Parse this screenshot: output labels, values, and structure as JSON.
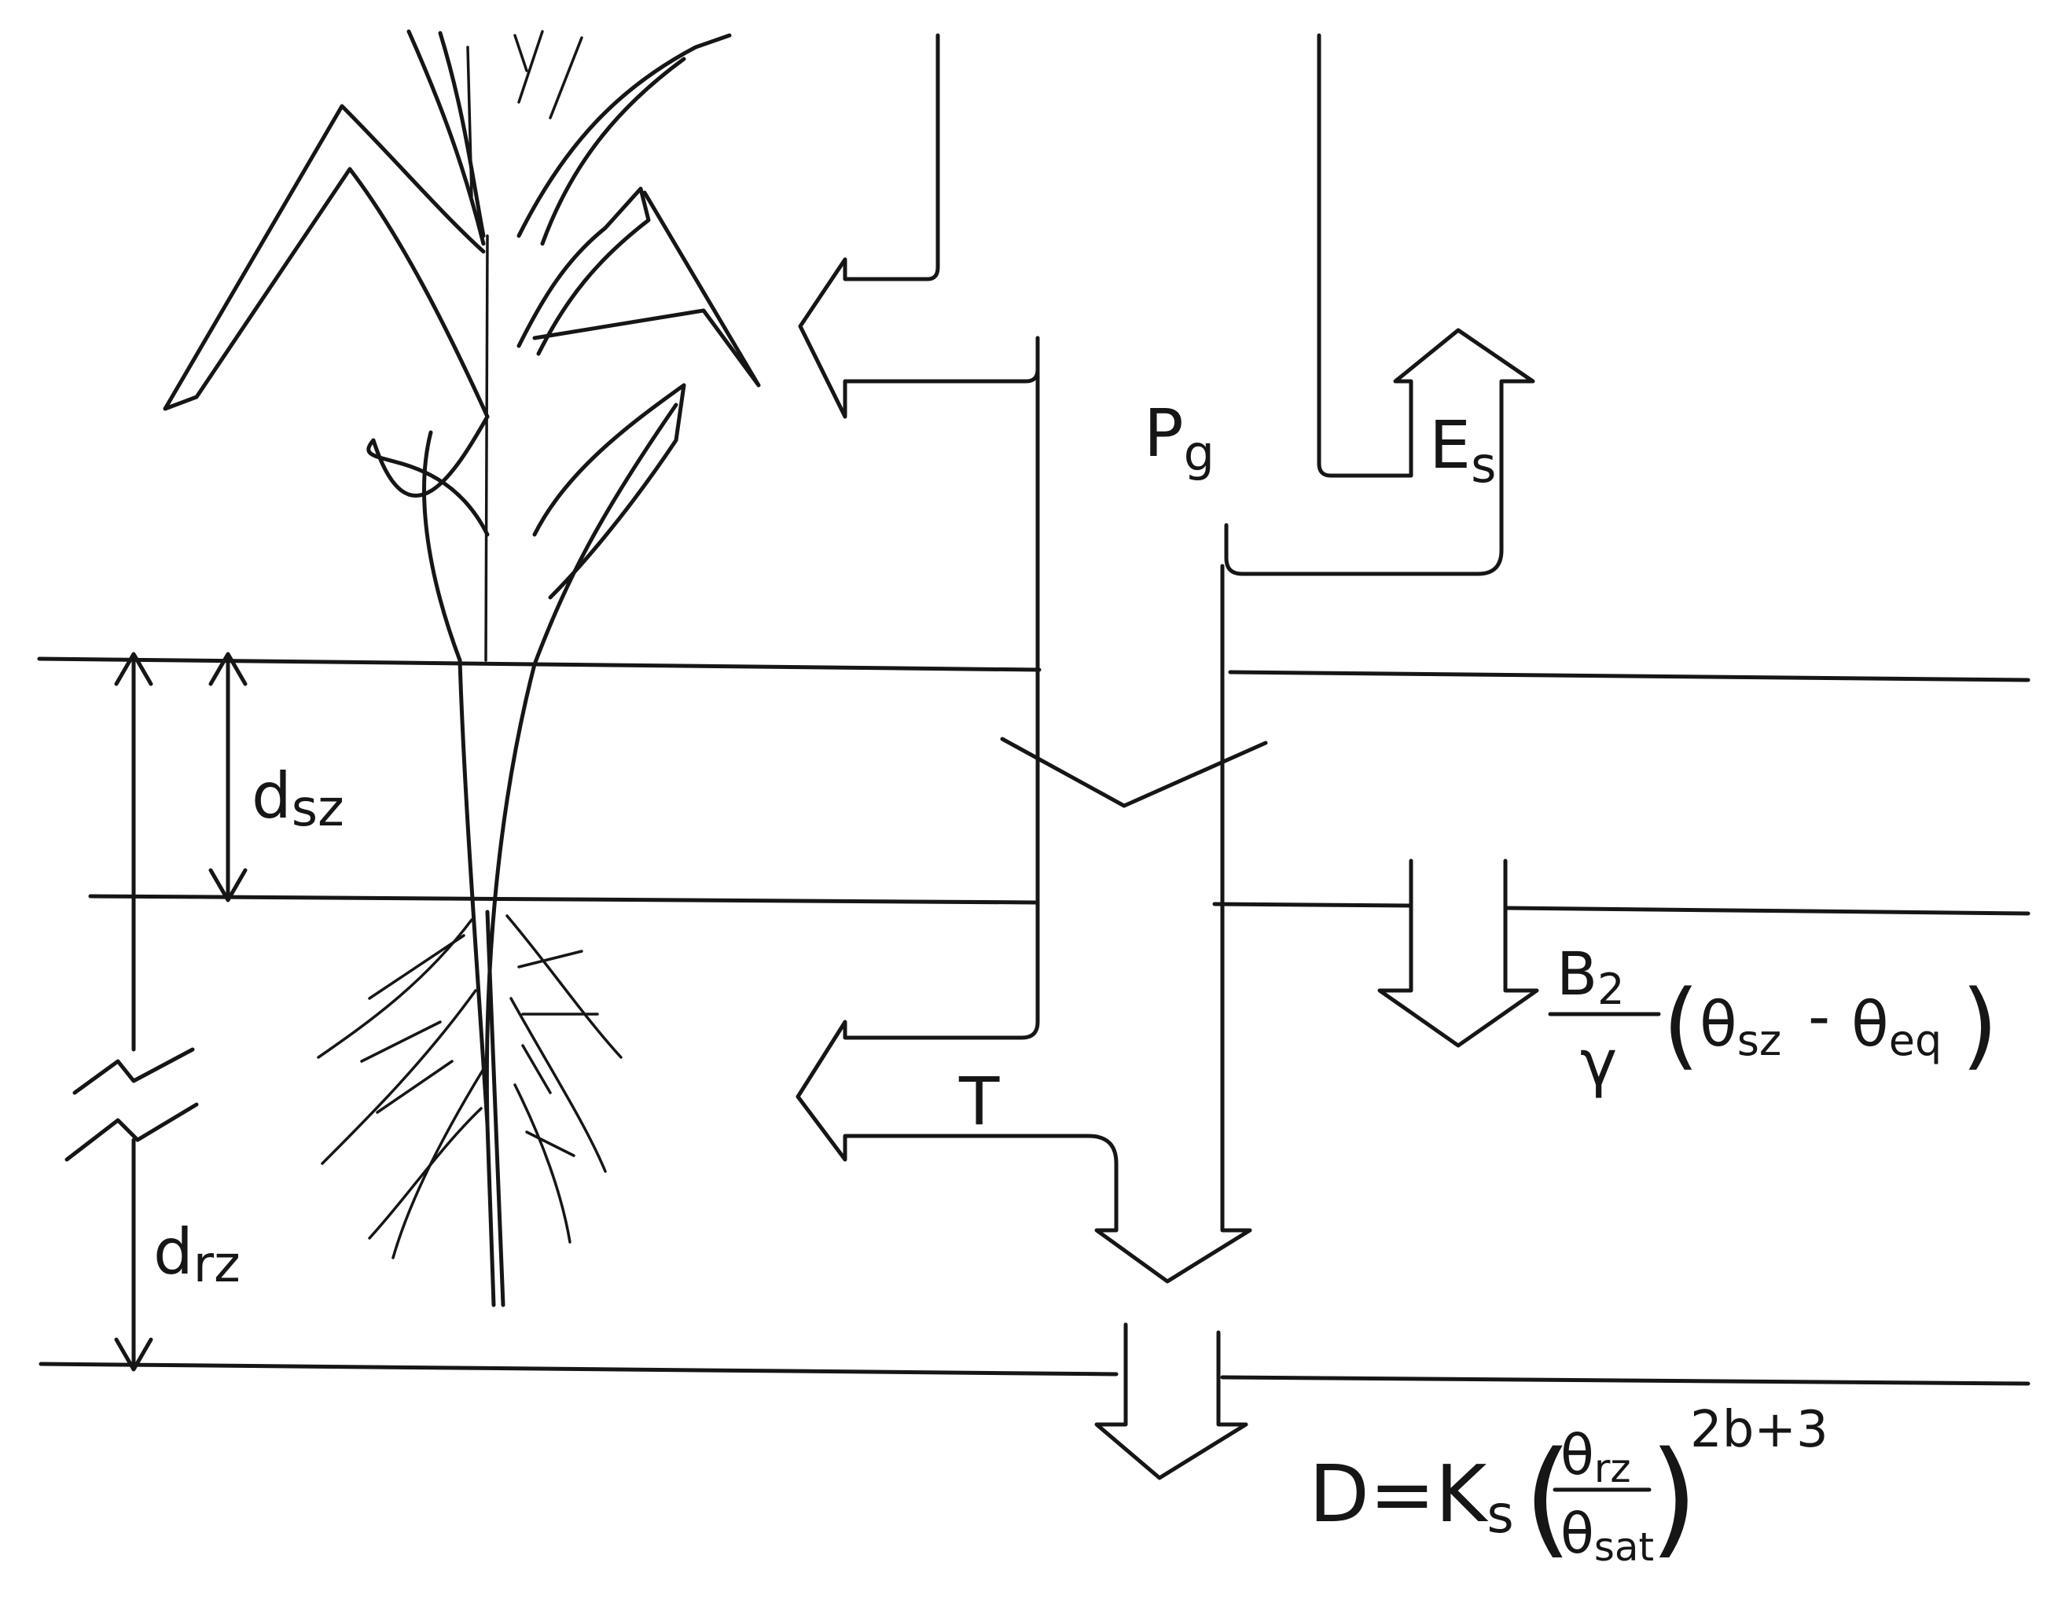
{
  "labels": {
    "precip_main": "P",
    "precip_sub": "g",
    "evap_main": "E",
    "evap_sub": "s",
    "transp": "T",
    "dsz_main": "d",
    "dsz_sub": "sz",
    "drz_main": "d",
    "drz_sub": "rz"
  },
  "formula_exchange": {
    "numerator": "B",
    "numerator_sub": "2",
    "denominator": "γ",
    "theta1": "θ",
    "theta1_sub": "sz",
    "theta2": "θ",
    "theta2_sub": "eq",
    "open": "(",
    "minus": "-",
    "close": ")"
  },
  "formula_drainage": {
    "lhs": "D=K",
    "lhs_sub": "s",
    "open": "(",
    "numerator": "θ",
    "numerator_sub": "rz",
    "denominator": "θ",
    "denominator_sub": "sat",
    "close": ")",
    "exponent": "2b+3"
  },
  "colors": {
    "ink": "#161616",
    "paper": "#ffffff"
  }
}
